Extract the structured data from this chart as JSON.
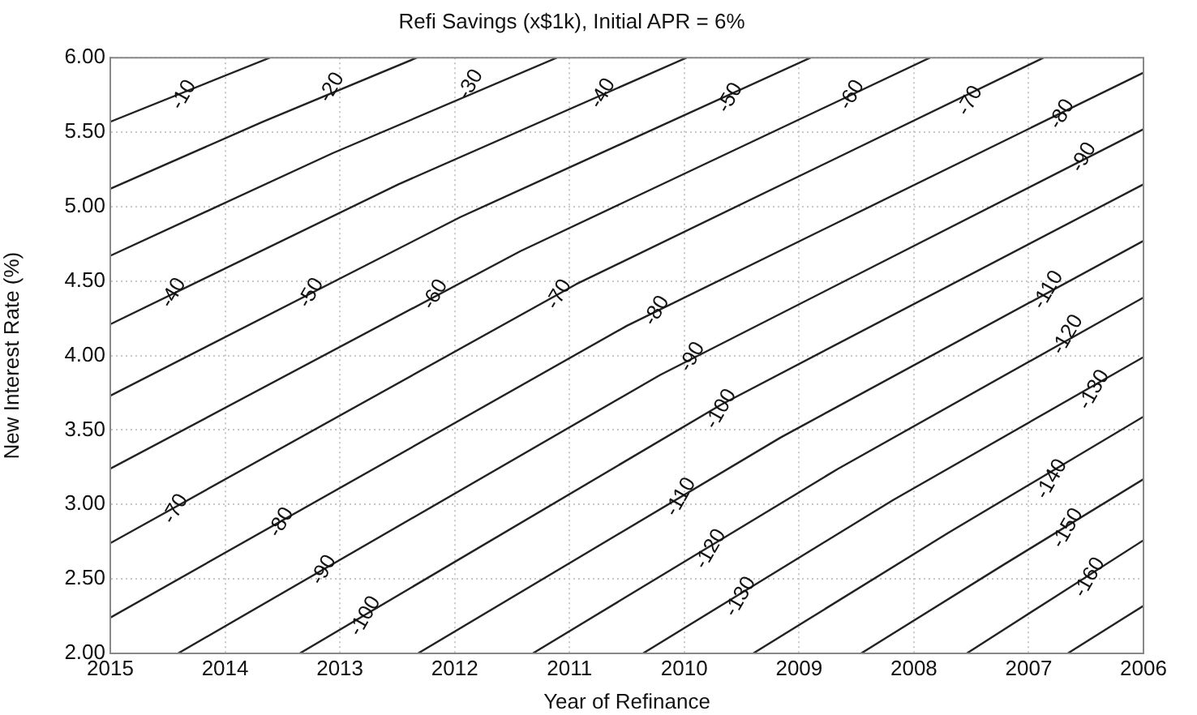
{
  "chart_data": {
    "type": "line",
    "title": "Refi Savings (x$1k), Initial APR = 6%",
    "xlabel": "Year of Refinance",
    "ylabel": "New Interest Rate (%)",
    "xlim": [
      2015,
      2006
    ],
    "xticks": [
      2015,
      2014,
      2013,
      2012,
      2011,
      2010,
      2009,
      2008,
      2007,
      2006
    ],
    "ylim": [
      2,
      6
    ],
    "yticks": [
      {
        "value": 2,
        "label": "2.00"
      },
      {
        "value": 2.5,
        "label": "2.50"
      },
      {
        "value": 3,
        "label": "3.00"
      },
      {
        "value": 3.5,
        "label": "3.50"
      },
      {
        "value": 4,
        "label": "4.00"
      },
      {
        "value": 4.5,
        "label": "4.50"
      },
      {
        "value": 5,
        "label": "5.00"
      },
      {
        "value": 5.5,
        "label": "5.50"
      },
      {
        "value": 6,
        "label": "6.00"
      }
    ],
    "grid": true,
    "marker": "none",
    "line_style": "solid",
    "series": [
      {
        "color": "#222222",
        "x": [
          2015,
          2013.61
        ],
        "values": [
          5.57,
          6
        ]
      },
      {
        "color": "#222222",
        "x": [
          2015,
          2013.67,
          2012.33
        ],
        "values": [
          5.12,
          5.57,
          6
        ]
      },
      {
        "color": "#222222",
        "x": [
          2015,
          2013.06,
          2011.11
        ],
        "values": [
          4.67,
          5.36,
          6
        ]
      },
      {
        "color": "#222222",
        "x": [
          2015,
          2012.49,
          2009.98
        ],
        "values": [
          4.21,
          5.15,
          6
        ]
      },
      {
        "color": "#222222",
        "x": [
          2015,
          2011.95,
          2008.9
        ],
        "values": [
          3.73,
          4.93,
          6
        ]
      },
      {
        "color": "#222222",
        "x": [
          2015,
          2011.43,
          2007.86
        ],
        "values": [
          3.24,
          4.7,
          6
        ]
      },
      {
        "color": "#222222",
        "x": [
          2015,
          2010.94,
          2006.87
        ],
        "values": [
          2.74,
          4.48,
          6
        ]
      },
      {
        "color": "#222222",
        "x": [
          2015,
          2010.5,
          2006
        ],
        "values": [
          2.24,
          4.2,
          5.9
        ]
      },
      {
        "color": "#222222",
        "x": [
          2014.41,
          2010.21,
          2006
        ],
        "values": [
          2,
          3.87,
          5.52
        ]
      },
      {
        "color": "#222222",
        "x": [
          2013.35,
          2009.68,
          2006
        ],
        "values": [
          2,
          3.67,
          5.15
        ]
      },
      {
        "color": "#222222",
        "x": [
          2012.32,
          2009.16,
          2006
        ],
        "values": [
          2,
          3.45,
          4.77
        ]
      },
      {
        "color": "#222222",
        "x": [
          2011.32,
          2008.66,
          2006
        ],
        "values": [
          2,
          3.24,
          4.39
        ]
      },
      {
        "color": "#222222",
        "x": [
          2010.36,
          2008.18,
          2006
        ],
        "values": [
          2,
          3.03,
          3.99
        ]
      },
      {
        "color": "#222222",
        "x": [
          2009.4,
          2007.7,
          2006
        ],
        "values": [
          2,
          2.81,
          3.59
        ]
      },
      {
        "color": "#222222",
        "x": [
          2008.46,
          2007.23,
          2006
        ],
        "values": [
          2,
          2.59,
          3.17
        ]
      },
      {
        "color": "#222222",
        "x": [
          2007.54,
          2006.77,
          2006
        ],
        "values": [
          2,
          2.38,
          2.76
        ]
      },
      {
        "color": "#222222",
        "x": [
          2006.66,
          2006
        ],
        "values": [
          2,
          2.32
        ]
      }
    ],
    "annotations": [
      {
        "text": "-10",
        "x": 2014.36,
        "y": 5.75
      },
      {
        "text": "-20",
        "x": 2013.07,
        "y": 5.8
      },
      {
        "text": "-30",
        "x": 2011.86,
        "y": 5.82
      },
      {
        "text": "-40",
        "x": 2010.71,
        "y": 5.76
      },
      {
        "text": "-40",
        "x": 2014.45,
        "y": 4.42
      },
      {
        "text": "-50",
        "x": 2013.25,
        "y": 4.42
      },
      {
        "text": "-60",
        "x": 2012.17,
        "y": 4.41
      },
      {
        "text": "-70",
        "x": 2011.09,
        "y": 4.41
      },
      {
        "text": "-50",
        "x": 2009.6,
        "y": 5.73
      },
      {
        "text": "-60",
        "x": 2008.54,
        "y": 5.75
      },
      {
        "text": "-70",
        "x": 2007.51,
        "y": 5.71
      },
      {
        "text": "-80",
        "x": 2006.71,
        "y": 5.62
      },
      {
        "text": "-90",
        "x": 2006.52,
        "y": 5.33
      },
      {
        "text": "-80",
        "x": 2010.24,
        "y": 4.3
      },
      {
        "text": "-90",
        "x": 2009.93,
        "y": 3.99
      },
      {
        "text": "-110",
        "x": 2006.83,
        "y": 4.44
      },
      {
        "text": "-120",
        "x": 2006.66,
        "y": 4.14
      },
      {
        "text": "-70",
        "x": 2014.43,
        "y": 2.97
      },
      {
        "text": "-80",
        "x": 2013.51,
        "y": 2.88
      },
      {
        "text": "-90",
        "x": 2013.14,
        "y": 2.56
      },
      {
        "text": "-100",
        "x": 2012.78,
        "y": 2.25
      },
      {
        "text": "-100",
        "x": 2009.68,
        "y": 3.64
      },
      {
        "text": "-110",
        "x": 2010.03,
        "y": 3.05
      },
      {
        "text": "-120",
        "x": 2009.77,
        "y": 2.7
      },
      {
        "text": "-130",
        "x": 2009.51,
        "y": 2.38
      },
      {
        "text": "-130",
        "x": 2006.43,
        "y": 3.77
      },
      {
        "text": "-140",
        "x": 2006.8,
        "y": 3.17
      },
      {
        "text": "-150",
        "x": 2006.66,
        "y": 2.84
      },
      {
        "text": "-160",
        "x": 2006.47,
        "y": 2.51
      }
    ]
  }
}
